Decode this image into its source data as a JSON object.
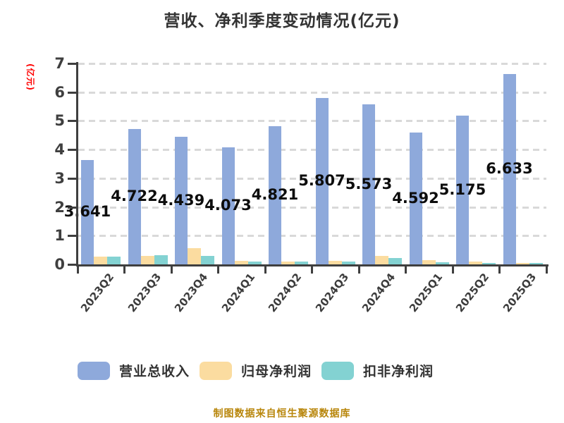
{
  "chart": {
    "title": "营收、净利季度变动情况(亿元)",
    "ylabel": "(亿元)",
    "footer": "制图数据来自恒生聚源数据库"
  },
  "chart_data": {
    "type": "bar",
    "title": "营收、净利季度变动情况(亿元)",
    "ylabel": "(亿元)",
    "xlabel": "",
    "categories": [
      "2023Q2",
      "2023Q3",
      "2023Q4",
      "2024Q1",
      "2024Q2",
      "2024Q3",
      "2024Q4",
      "2025Q1",
      "2025Q2",
      "2025Q3"
    ],
    "series": [
      {
        "name": "营业总收入",
        "color": "#8ea9db",
        "values": [
          3.641,
          4.722,
          4.439,
          4.073,
          4.821,
          5.807,
          5.573,
          4.592,
          5.175,
          6.633
        ],
        "labeled": true
      },
      {
        "name": "归母净利润",
        "color": "#fbdca0",
        "values": [
          0.28,
          0.3,
          0.57,
          0.12,
          0.11,
          0.12,
          0.3,
          0.15,
          0.09,
          0.06
        ],
        "labeled": false
      },
      {
        "name": "扣非净利润",
        "color": "#83d2d2",
        "values": [
          0.28,
          0.31,
          0.3,
          0.09,
          0.09,
          0.1,
          0.22,
          0.07,
          0.05,
          0.04
        ],
        "labeled": false
      }
    ],
    "ylim": [
      0,
      7
    ],
    "yticks": [
      0,
      1,
      2,
      3,
      4,
      5,
      6,
      7
    ],
    "grid": "horizontal-dashed",
    "legend_position": "bottom",
    "source_note": "制图数据来自恒生聚源数据库",
    "colors": {
      "axis": "#3f3f3f",
      "grid": "#d9d9d9",
      "title": "#333333",
      "ylabel": "#ff0000",
      "value_label": "#0d0d0d",
      "footer": "#b8860b"
    }
  }
}
